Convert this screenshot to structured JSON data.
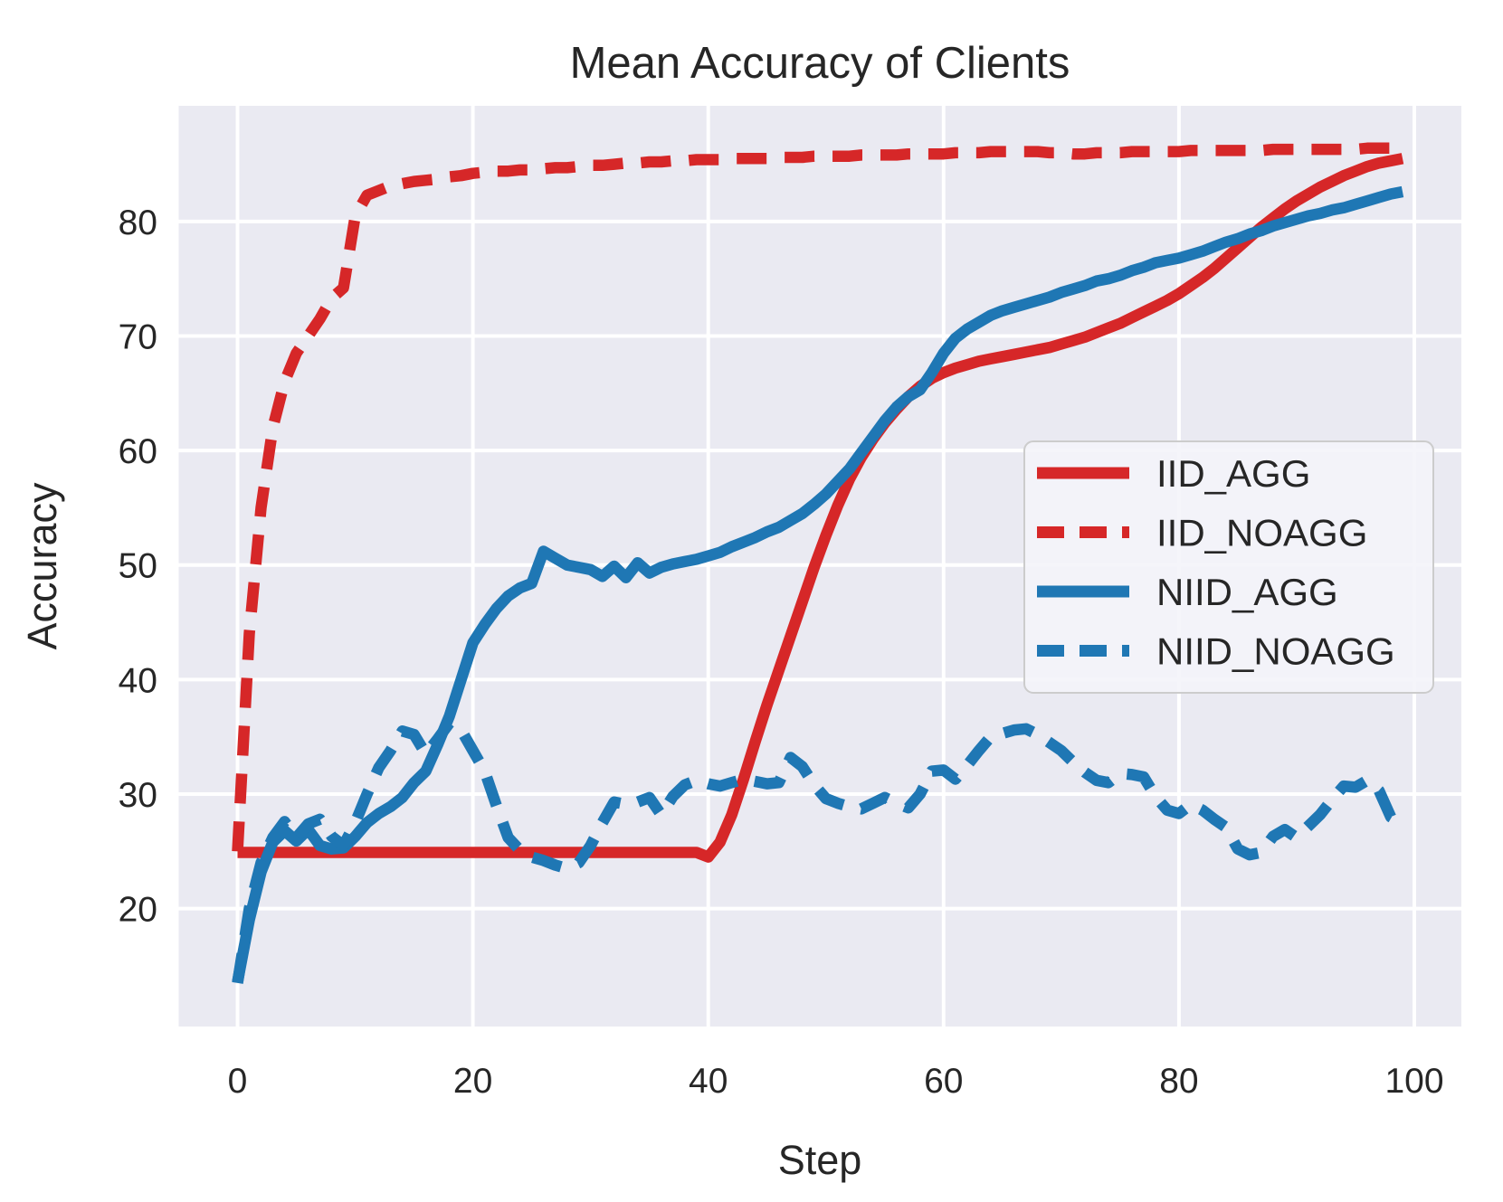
{
  "chart_data": {
    "type": "line",
    "title": "Mean Accuracy of Clients",
    "xlabel": "Step",
    "ylabel": "Accuracy",
    "x_ticks": [
      0,
      20,
      40,
      60,
      80,
      100
    ],
    "y_ticks": [
      20,
      30,
      40,
      50,
      60,
      70,
      80
    ],
    "xlim": [
      -5,
      104
    ],
    "ylim": [
      9.7,
      90.1
    ],
    "grid": true,
    "legend_position": "center-right-inside",
    "x_start": 0,
    "x_step": 1,
    "colors": {
      "background": "#eaeaf2",
      "grid": "#ffffff",
      "text": "#262626",
      "figure_background": "#ffffff",
      "red": "#d62728",
      "blue": "#1f77b4",
      "legend_face": "#f4f4f9",
      "legend_edge": "#cccccc"
    },
    "series": [
      {
        "name": "IID_AGG",
        "color": "#d62728",
        "line_style": "solid",
        "values": [
          24.9,
          24.9,
          24.9,
          24.9,
          24.9,
          24.9,
          24.9,
          24.9,
          24.9,
          24.9,
          24.9,
          24.9,
          24.9,
          24.9,
          24.9,
          24.9,
          24.9,
          24.9,
          24.9,
          24.9,
          24.9,
          24.9,
          24.9,
          24.9,
          24.9,
          24.9,
          24.9,
          24.9,
          24.9,
          24.9,
          24.9,
          24.9,
          24.9,
          24.9,
          24.9,
          24.9,
          24.9,
          24.9,
          24.9,
          24.9,
          24.5,
          25.8,
          28.2,
          31.3,
          34.6,
          37.8,
          40.8,
          43.8,
          46.8,
          49.8,
          52.6,
          55.2,
          57.5,
          59.4,
          61.0,
          62.4,
          63.6,
          64.7,
          65.6,
          66.3,
          66.8,
          67.2,
          67.5,
          67.8,
          68.0,
          68.2,
          68.4,
          68.6,
          68.8,
          69.0,
          69.3,
          69.6,
          69.9,
          70.3,
          70.7,
          71.1,
          71.6,
          72.1,
          72.6,
          73.1,
          73.7,
          74.4,
          75.1,
          75.9,
          76.8,
          77.7,
          78.6,
          79.5,
          80.3,
          81.1,
          81.8,
          82.4,
          83.0,
          83.5,
          84.0,
          84.4,
          84.8,
          85.1,
          85.3,
          85.5
        ]
      },
      {
        "name": "IID_NOAGG",
        "color": "#d62728",
        "line_style": "dashed",
        "values": [
          25.0,
          44.0,
          55.0,
          62.0,
          66.0,
          68.5,
          70.0,
          71.5,
          73.3,
          74.2,
          80.5,
          82.3,
          82.7,
          83.1,
          83.3,
          83.5,
          83.6,
          83.7,
          83.9,
          84.0,
          84.2,
          84.3,
          84.4,
          84.4,
          84.5,
          84.5,
          84.6,
          84.7,
          84.7,
          84.8,
          84.9,
          84.9,
          85.0,
          85.1,
          85.1,
          85.2,
          85.2,
          85.3,
          85.3,
          85.4,
          85.4,
          85.4,
          85.5,
          85.5,
          85.5,
          85.5,
          85.6,
          85.6,
          85.6,
          85.7,
          85.7,
          85.7,
          85.7,
          85.8,
          85.8,
          85.8,
          85.8,
          85.9,
          85.9,
          85.9,
          85.9,
          86.0,
          86.0,
          86.0,
          86.1,
          86.1,
          86.1,
          86.1,
          86.1,
          86.0,
          86.0,
          85.9,
          85.9,
          86.0,
          86.0,
          86.0,
          86.1,
          86.1,
          86.1,
          86.1,
          86.1,
          86.2,
          86.2,
          86.2,
          86.2,
          86.2,
          86.2,
          86.2,
          86.3,
          86.3,
          86.3,
          86.3,
          86.3,
          86.3,
          86.3,
          86.3,
          86.4,
          86.4,
          86.4,
          86.4
        ]
      },
      {
        "name": "NIID_AGG",
        "color": "#1f77b4",
        "line_style": "solid",
        "values": [
          13.6,
          19.0,
          23.2,
          25.8,
          26.8,
          25.9,
          26.9,
          25.5,
          25.2,
          25.3,
          26.3,
          27.5,
          28.3,
          28.9,
          29.7,
          31.0,
          32.0,
          34.3,
          36.8,
          40.0,
          43.2,
          44.8,
          46.2,
          47.3,
          48.0,
          48.4,
          51.2,
          50.6,
          50.0,
          49.8,
          49.6,
          49.0,
          49.9,
          48.9,
          50.2,
          49.3,
          49.8,
          50.1,
          50.3,
          50.5,
          50.8,
          51.1,
          51.6,
          52.0,
          52.4,
          52.9,
          53.3,
          53.9,
          54.5,
          55.3,
          56.2,
          57.3,
          58.4,
          59.8,
          61.2,
          62.6,
          63.8,
          64.7,
          65.3,
          66.8,
          68.5,
          69.8,
          70.6,
          71.2,
          71.8,
          72.2,
          72.5,
          72.8,
          73.1,
          73.4,
          73.8,
          74.1,
          74.4,
          74.8,
          75.0,
          75.3,
          75.7,
          76.0,
          76.4,
          76.6,
          76.8,
          77.1,
          77.4,
          77.8,
          78.2,
          78.5,
          78.9,
          79.2,
          79.6,
          79.9,
          80.2,
          80.5,
          80.7,
          81.0,
          81.2,
          81.5,
          81.8,
          82.1,
          82.4,
          82.6
        ]
      },
      {
        "name": "NIID_NOAGG",
        "color": "#1f77b4",
        "line_style": "dashed",
        "values": [
          13.5,
          20.0,
          24.0,
          26.2,
          27.6,
          26.2,
          27.4,
          27.8,
          26.3,
          25.5,
          27.5,
          30.0,
          32.3,
          33.8,
          35.5,
          35.2,
          33.5,
          34.8,
          36.2,
          35.6,
          33.8,
          32.0,
          29.0,
          26.2,
          25.1,
          24.5,
          24.2,
          23.8,
          23.5,
          24.0,
          25.5,
          27.5,
          29.3,
          29.1,
          29.3,
          29.7,
          28.2,
          29.8,
          30.8,
          31.2,
          30.9,
          30.7,
          31.0,
          31.3,
          31.1,
          30.9,
          31.0,
          33.2,
          32.4,
          30.8,
          29.6,
          29.2,
          28.9,
          28.7,
          29.2,
          29.7,
          29.2,
          28.8,
          30.0,
          32.0,
          32.1,
          31.3,
          32.5,
          33.8,
          35.0,
          35.3,
          35.6,
          35.7,
          35.2,
          34.5,
          33.8,
          32.8,
          31.9,
          31.2,
          31.0,
          31.8,
          31.7,
          31.5,
          29.8,
          28.6,
          28.3,
          29.1,
          28.6,
          27.8,
          27.1,
          25.2,
          24.7,
          24.9,
          26.3,
          26.9,
          26.2,
          27.2,
          28.2,
          29.5,
          30.7,
          30.6,
          31.2,
          30.3,
          28.0,
          27.4
        ]
      }
    ]
  }
}
